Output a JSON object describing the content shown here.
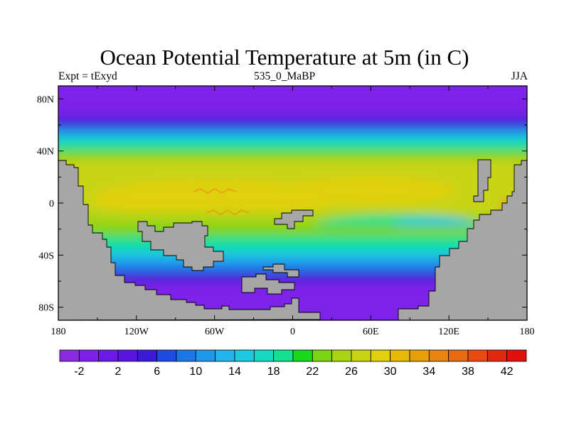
{
  "title": "Ocean Potential Temperature at 5m (in C)",
  "subtitle_left": "Expt = tExyd",
  "subtitle_center": "535_0_MaBP",
  "subtitle_right": "JJA",
  "lat_ticks": [
    {
      "value": 80,
      "label": "80N"
    },
    {
      "value": 40,
      "label": "40N"
    },
    {
      "value": 0,
      "label": "0"
    },
    {
      "value": -40,
      "label": "40S"
    },
    {
      "value": -80,
      "label": "80S"
    }
  ],
  "lon_ticks": [
    {
      "value": -180,
      "label": "180"
    },
    {
      "value": -120,
      "label": "120W"
    },
    {
      "value": -60,
      "label": "60W"
    },
    {
      "value": 0,
      "label": "0"
    },
    {
      "value": 60,
      "label": "60E"
    },
    {
      "value": 120,
      "label": "120E"
    },
    {
      "value": 180,
      "label": "180"
    }
  ],
  "colorbar": {
    "labels": [
      "-2",
      "2",
      "6",
      "10",
      "14",
      "18",
      "22",
      "26",
      "30",
      "34",
      "38",
      "42"
    ],
    "colors": [
      "#8a2be2",
      "#7d20e8",
      "#6a1ae6",
      "#5a16e0",
      "#3a1ad8",
      "#1e4be0",
      "#1a78e6",
      "#1e98ea",
      "#22b4ec",
      "#1ec8e0",
      "#18d8c4",
      "#14e090",
      "#1ad81a",
      "#7ad414",
      "#a8d414",
      "#c8d414",
      "#e0d010",
      "#e8b808",
      "#e89e08",
      "#e88410",
      "#e86a10",
      "#e84a10",
      "#e02a0c",
      "#e0100c"
    ]
  },
  "land_color": "#a6a6a6"
}
